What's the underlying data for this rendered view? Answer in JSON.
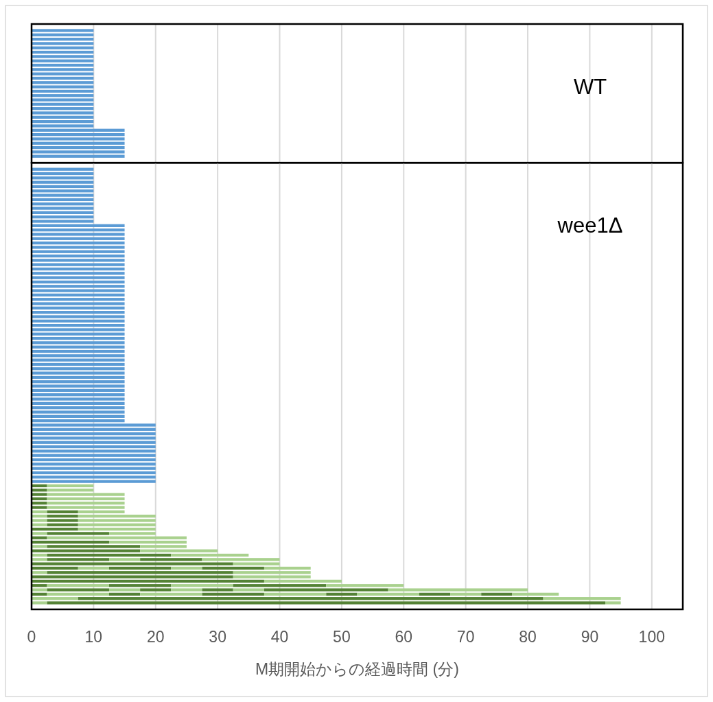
{
  "chart_data": [
    {
      "type": "bar",
      "orientation": "horizontal",
      "stacked": true,
      "grid": "x",
      "tick_labels": false,
      "xlim": [
        0,
        105
      ],
      "xticks": [
        0,
        10,
        20,
        30,
        40,
        50,
        60,
        70,
        80,
        90,
        100
      ],
      "annotations": [
        "WT"
      ],
      "categories": [
        null,
        null,
        null,
        null,
        null,
        null,
        null,
        null,
        null,
        null,
        null,
        null,
        null,
        null,
        null,
        null,
        null,
        null,
        null,
        null,
        null,
        null,
        null,
        null,
        null,
        null,
        null,
        null,
        null,
        null
      ],
      "series": [
        {
          "color": "#5b9bd5",
          "values": [
            10,
            10,
            10,
            10,
            10,
            10,
            10,
            10,
            10,
            10,
            10,
            10,
            10,
            10,
            10,
            10,
            10,
            10,
            10,
            10,
            10,
            10,
            10,
            15,
            15,
            15,
            15,
            15,
            15,
            15
          ]
        }
      ]
    },
    {
      "type": "bar",
      "orientation": "horizontal",
      "stacked": true,
      "grid": "x",
      "tick_labels": "x",
      "xlim": [
        0,
        105
      ],
      "xticks": [
        0,
        10,
        20,
        30,
        40,
        50,
        60,
        70,
        80,
        90,
        100
      ],
      "xlabel": "M期開始からの経過時間 (分)",
      "annotations": [
        "wee1Δ"
      ],
      "categories": [
        null,
        null,
        null,
        null,
        null,
        null,
        null,
        null,
        null,
        null,
        null,
        null,
        null,
        null,
        null,
        null,
        null,
        null,
        null,
        null,
        null,
        null,
        null,
        null,
        null,
        null,
        null,
        null,
        null,
        null,
        null,
        null,
        null,
        null,
        null,
        null,
        null,
        null,
        null,
        null,
        null,
        null,
        null,
        null,
        null,
        null,
        null,
        null,
        null,
        null,
        null,
        null,
        null,
        null,
        null,
        null,
        null,
        null,
        null,
        null,
        null,
        null,
        null,
        null,
        null,
        null,
        null,
        null,
        null,
        null,
        null,
        null,
        null,
        null,
        null,
        null,
        null,
        null,
        null,
        null,
        null,
        null,
        null,
        null,
        null,
        null,
        null,
        null,
        null,
        null,
        null,
        null,
        null,
        null,
        null,
        null,
        null,
        null,
        null,
        null,
        null
      ],
      "series": [
        {
          "color": "#5b9bd5",
          "values": [
            10,
            10,
            10,
            10,
            10,
            10,
            10,
            10,
            10,
            10,
            10,
            10,
            10,
            15,
            15,
            15,
            15,
            15,
            15,
            15,
            15,
            15,
            15,
            15,
            15,
            15,
            15,
            15,
            15,
            15,
            15,
            15,
            15,
            15,
            15,
            15,
            15,
            15,
            15,
            15,
            15,
            15,
            15,
            15,
            15,
            15,
            15,
            15,
            15,
            15,
            15,
            15,
            15,
            15,
            15,
            15,
            15,
            15,
            15,
            20,
            20,
            20,
            20,
            20,
            20,
            20,
            20,
            20,
            20,
            20,
            20,
            20,
            20,
            null,
            null,
            null,
            null,
            null,
            null,
            null,
            null,
            null,
            null,
            null,
            null,
            null,
            null,
            null,
            null,
            null,
            null,
            null,
            null,
            null,
            null,
            null,
            null,
            null,
            null,
            null,
            null
          ]
        },
        {
          "color": "#548235",
          "values": [
            null,
            null,
            null,
            null,
            null,
            null,
            null,
            null,
            null,
            null,
            null,
            null,
            null,
            null,
            null,
            null,
            null,
            null,
            null,
            null,
            null,
            null,
            null,
            null,
            null,
            null,
            null,
            null,
            null,
            null,
            null,
            null,
            null,
            null,
            null,
            null,
            null,
            null,
            null,
            null,
            null,
            null,
            null,
            null,
            null,
            null,
            null,
            null,
            null,
            null,
            null,
            null,
            null,
            null,
            null,
            null,
            null,
            null,
            null,
            null,
            null,
            null,
            null,
            null,
            null,
            null,
            null,
            null,
            null,
            null,
            null,
            null,
            null,
            2.5,
            2.5,
            2.5,
            2.5,
            2.5,
            2.5,
            null,
            null,
            null,
            null,
            7.5,
            null,
            2.5,
            12.5,
            null,
            17.5,
            null,
            null,
            32.5,
            7.5,
            null,
            32.5,
            37.5,
            2.5,
            null,
            2.5,
            null,
            null
          ]
        },
        {
          "color": "#a9d18e",
          "values": [
            null,
            null,
            null,
            null,
            null,
            null,
            null,
            null,
            null,
            null,
            null,
            null,
            null,
            null,
            null,
            null,
            null,
            null,
            null,
            null,
            null,
            null,
            null,
            null,
            null,
            null,
            null,
            null,
            null,
            null,
            null,
            null,
            null,
            null,
            null,
            null,
            null,
            null,
            null,
            null,
            null,
            null,
            null,
            null,
            null,
            null,
            null,
            null,
            null,
            null,
            null,
            null,
            null,
            null,
            null,
            null,
            null,
            null,
            null,
            null,
            null,
            null,
            null,
            null,
            null,
            null,
            null,
            null,
            null,
            null,
            null,
            null,
            null,
            7.5,
            7.5,
            12.5,
            12.5,
            12.5,
            12.5,
            2.5,
            2.5,
            2.5,
            2.5,
            12.5,
            2.5,
            22.5,
            12.5,
            2.5,
            12.5,
            2.5,
            2.5,
            7.5,
            5,
            2.5,
            12.5,
            12.5,
            10,
            2.5,
            10,
            7.5,
            2.5
          ]
        },
        {
          "color": "#548235",
          "values": [
            null,
            null,
            null,
            null,
            null,
            null,
            null,
            null,
            null,
            null,
            null,
            null,
            null,
            null,
            null,
            null,
            null,
            null,
            null,
            null,
            null,
            null,
            null,
            null,
            null,
            null,
            null,
            null,
            null,
            null,
            null,
            null,
            null,
            null,
            null,
            null,
            null,
            null,
            null,
            null,
            null,
            null,
            null,
            null,
            null,
            null,
            null,
            null,
            null,
            null,
            null,
            null,
            null,
            null,
            null,
            null,
            null,
            null,
            null,
            null,
            null,
            null,
            null,
            null,
            null,
            null,
            null,
            null,
            null,
            null,
            null,
            null,
            null,
            null,
            null,
            null,
            null,
            null,
            null,
            5,
            5,
            5,
            5,
            null,
            10,
            null,
            null,
            15,
            null,
            20,
            10,
            null,
            10,
            30,
            null,
            null,
            10,
            10,
            5,
            75,
            90
          ]
        },
        {
          "color": "#a9d18e",
          "values": [
            null,
            null,
            null,
            null,
            null,
            null,
            null,
            null,
            null,
            null,
            null,
            null,
            null,
            null,
            null,
            null,
            null,
            null,
            null,
            null,
            null,
            null,
            null,
            null,
            null,
            null,
            null,
            null,
            null,
            null,
            null,
            null,
            null,
            null,
            null,
            null,
            null,
            null,
            null,
            null,
            null,
            null,
            null,
            null,
            null,
            null,
            null,
            null,
            null,
            null,
            null,
            null,
            null,
            null,
            null,
            null,
            null,
            null,
            null,
            null,
            null,
            null,
            null,
            null,
            null,
            null,
            null,
            null,
            null,
            null,
            null,
            null,
            null,
            null,
            null,
            null,
            null,
            null,
            null,
            7.5,
            12.5,
            12.5,
            12.5,
            null,
            7.5,
            null,
            null,
            7.5,
            null,
            12.5,
            5,
            null,
            5,
            12.5,
            null,
            null,
            10,
            5,
            10,
            12.5,
            2.5
          ]
        },
        {
          "color": "#548235",
          "values": [
            null,
            null,
            null,
            null,
            null,
            null,
            null,
            null,
            null,
            null,
            null,
            null,
            null,
            null,
            null,
            null,
            null,
            null,
            null,
            null,
            null,
            null,
            null,
            null,
            null,
            null,
            null,
            null,
            null,
            null,
            null,
            null,
            null,
            null,
            null,
            null,
            null,
            null,
            null,
            null,
            null,
            null,
            null,
            null,
            null,
            null,
            null,
            null,
            null,
            null,
            null,
            null,
            null,
            null,
            null,
            null,
            null,
            null,
            null,
            null,
            null,
            null,
            null,
            null,
            null,
            null,
            null,
            null,
            null,
            null,
            null,
            null,
            null,
            null,
            null,
            null,
            null,
            null,
            null,
            null,
            null,
            null,
            null,
            null,
            null,
            null,
            null,
            null,
            null,
            null,
            10,
            null,
            10,
            null,
            null,
            null,
            15,
            5,
            10,
            null,
            null
          ]
        },
        {
          "color": "#a9d18e",
          "values": [
            null,
            null,
            null,
            null,
            null,
            null,
            null,
            null,
            null,
            null,
            null,
            null,
            null,
            null,
            null,
            null,
            null,
            null,
            null,
            null,
            null,
            null,
            null,
            null,
            null,
            null,
            null,
            null,
            null,
            null,
            null,
            null,
            null,
            null,
            null,
            null,
            null,
            null,
            null,
            null,
            null,
            null,
            null,
            null,
            null,
            null,
            null,
            null,
            null,
            null,
            null,
            null,
            null,
            null,
            null,
            null,
            null,
            null,
            null,
            null,
            null,
            null,
            null,
            null,
            null,
            null,
            null,
            null,
            null,
            null,
            null,
            null,
            null,
            null,
            null,
            null,
            null,
            null,
            null,
            null,
            null,
            null,
            null,
            null,
            null,
            null,
            null,
            null,
            null,
            null,
            12.5,
            null,
            7.5,
            null,
            null,
            null,
            12.5,
            5,
            10,
            null,
            null
          ]
        },
        {
          "color": "#548235",
          "values": [
            null,
            null,
            null,
            null,
            null,
            null,
            null,
            null,
            null,
            null,
            null,
            null,
            null,
            null,
            null,
            null,
            null,
            null,
            null,
            null,
            null,
            null,
            null,
            null,
            null,
            null,
            null,
            null,
            null,
            null,
            null,
            null,
            null,
            null,
            null,
            null,
            null,
            null,
            null,
            null,
            null,
            null,
            null,
            null,
            null,
            null,
            null,
            null,
            null,
            null,
            null,
            null,
            null,
            null,
            null,
            null,
            null,
            null,
            null,
            null,
            null,
            null,
            null,
            null,
            null,
            null,
            null,
            null,
            null,
            null,
            null,
            null,
            null,
            null,
            null,
            null,
            null,
            null,
            null,
            null,
            null,
            null,
            null,
            null,
            null,
            null,
            null,
            null,
            null,
            null,
            null,
            null,
            null,
            null,
            null,
            null,
            null,
            5,
            5,
            null,
            null
          ]
        },
        {
          "color": "#a9d18e",
          "values": [
            null,
            null,
            null,
            null,
            null,
            null,
            null,
            null,
            null,
            null,
            null,
            null,
            null,
            null,
            null,
            null,
            null,
            null,
            null,
            null,
            null,
            null,
            null,
            null,
            null,
            null,
            null,
            null,
            null,
            null,
            null,
            null,
            null,
            null,
            null,
            null,
            null,
            null,
            null,
            null,
            null,
            null,
            null,
            null,
            null,
            null,
            null,
            null,
            null,
            null,
            null,
            null,
            null,
            null,
            null,
            null,
            null,
            null,
            null,
            null,
            null,
            null,
            null,
            null,
            null,
            null,
            null,
            null,
            null,
            null,
            null,
            null,
            null,
            null,
            null,
            null,
            null,
            null,
            null,
            null,
            null,
            null,
            null,
            null,
            null,
            null,
            null,
            null,
            null,
            null,
            null,
            null,
            null,
            null,
            null,
            null,
            null,
            5,
            10,
            null,
            null
          ]
        },
        {
          "color": "#548235",
          "values": [
            null,
            null,
            null,
            null,
            null,
            null,
            null,
            null,
            null,
            null,
            null,
            null,
            null,
            null,
            null,
            null,
            null,
            null,
            null,
            null,
            null,
            null,
            null,
            null,
            null,
            null,
            null,
            null,
            null,
            null,
            null,
            null,
            null,
            null,
            null,
            null,
            null,
            null,
            null,
            null,
            null,
            null,
            null,
            null,
            null,
            null,
            null,
            null,
            null,
            null,
            null,
            null,
            null,
            null,
            null,
            null,
            null,
            null,
            null,
            null,
            null,
            null,
            null,
            null,
            null,
            null,
            null,
            null,
            null,
            null,
            null,
            null,
            null,
            null,
            null,
            null,
            null,
            null,
            null,
            null,
            null,
            null,
            null,
            null,
            null,
            null,
            null,
            null,
            null,
            null,
            null,
            null,
            null,
            null,
            null,
            null,
            null,
            20,
            5,
            null,
            null
          ]
        },
        {
          "color": "#a9d18e",
          "values": [
            null,
            null,
            null,
            null,
            null,
            null,
            null,
            null,
            null,
            null,
            null,
            null,
            null,
            null,
            null,
            null,
            null,
            null,
            null,
            null,
            null,
            null,
            null,
            null,
            null,
            null,
            null,
            null,
            null,
            null,
            null,
            null,
            null,
            null,
            null,
            null,
            null,
            null,
            null,
            null,
            null,
            null,
            null,
            null,
            null,
            null,
            null,
            null,
            null,
            null,
            null,
            null,
            null,
            null,
            null,
            null,
            null,
            null,
            null,
            null,
            null,
            null,
            null,
            null,
            null,
            null,
            null,
            null,
            null,
            null,
            null,
            null,
            null,
            null,
            null,
            null,
            null,
            null,
            null,
            null,
            null,
            null,
            null,
            null,
            null,
            null,
            null,
            null,
            null,
            null,
            null,
            null,
            null,
            null,
            null,
            null,
            null,
            22.5,
            5,
            null,
            null
          ]
        },
        {
          "color": "#548235",
          "values": [
            null,
            null,
            null,
            null,
            null,
            null,
            null,
            null,
            null,
            null,
            null,
            null,
            null,
            null,
            null,
            null,
            null,
            null,
            null,
            null,
            null,
            null,
            null,
            null,
            null,
            null,
            null,
            null,
            null,
            null,
            null,
            null,
            null,
            null,
            null,
            null,
            null,
            null,
            null,
            null,
            null,
            null,
            null,
            null,
            null,
            null,
            null,
            null,
            null,
            null,
            null,
            null,
            null,
            null,
            null,
            null,
            null,
            null,
            null,
            null,
            null,
            null,
            null,
            null,
            null,
            null,
            null,
            null,
            null,
            null,
            null,
            null,
            null,
            null,
            null,
            null,
            null,
            null,
            null,
            null,
            null,
            null,
            null,
            null,
            null,
            null,
            null,
            null,
            null,
            null,
            null,
            null,
            null,
            null,
            null,
            null,
            null,
            null,
            5,
            null,
            null
          ]
        },
        {
          "color": "#a9d18e",
          "values": [
            null,
            null,
            null,
            null,
            null,
            null,
            null,
            null,
            null,
            null,
            null,
            null,
            null,
            null,
            null,
            null,
            null,
            null,
            null,
            null,
            null,
            null,
            null,
            null,
            null,
            null,
            null,
            null,
            null,
            null,
            null,
            null,
            null,
            null,
            null,
            null,
            null,
            null,
            null,
            null,
            null,
            null,
            null,
            null,
            null,
            null,
            null,
            null,
            null,
            null,
            null,
            null,
            null,
            null,
            null,
            null,
            null,
            null,
            null,
            null,
            null,
            null,
            null,
            null,
            null,
            null,
            null,
            null,
            null,
            null,
            null,
            null,
            null,
            null,
            null,
            null,
            null,
            null,
            null,
            null,
            null,
            null,
            null,
            null,
            null,
            null,
            null,
            null,
            null,
            null,
            null,
            null,
            null,
            null,
            null,
            null,
            null,
            null,
            7.5,
            null,
            null
          ]
        }
      ]
    }
  ]
}
